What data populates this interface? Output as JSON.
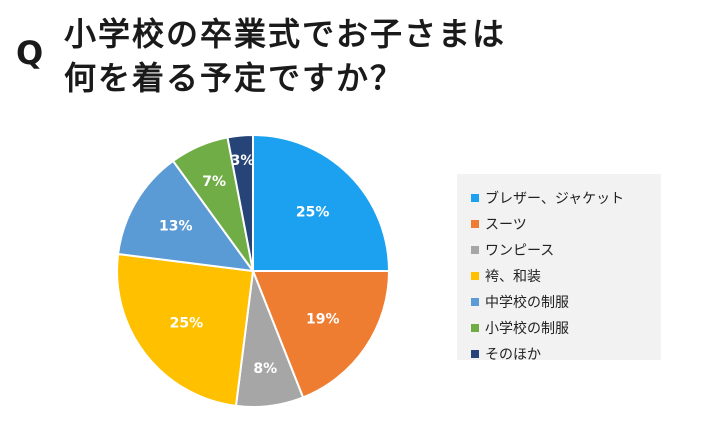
{
  "question_mark": "Q",
  "title": {
    "line1": "小学校の卒業式でお子さまは",
    "line2": "何を着る予定ですか？"
  },
  "chart_data": {
    "type": "pie",
    "start_angle_deg": 0,
    "direction": "clockwise",
    "slices": [
      {
        "label": "ブレザー、ジャケット",
        "value": 25,
        "display": "25%",
        "color": "#1ca0f0"
      },
      {
        "label": "スーツ",
        "value": 19,
        "display": "19%",
        "color": "#ee7d31"
      },
      {
        "label": "ワンピース",
        "value": 8,
        "display": "8%",
        "color": "#a6a6a6"
      },
      {
        "label": "袴、和装",
        "value": 25,
        "display": "25%",
        "color": "#ffc000"
      },
      {
        "label": "中学校の制服",
        "value": 13,
        "display": "13%",
        "color": "#5b9bd5"
      },
      {
        "label": "小学校の制服",
        "value": 7,
        "display": "7%",
        "color": "#70ad47"
      },
      {
        "label": "そのほか",
        "value": 3,
        "display": "3%",
        "color": "#264478"
      }
    ],
    "legend_position": "right"
  }
}
